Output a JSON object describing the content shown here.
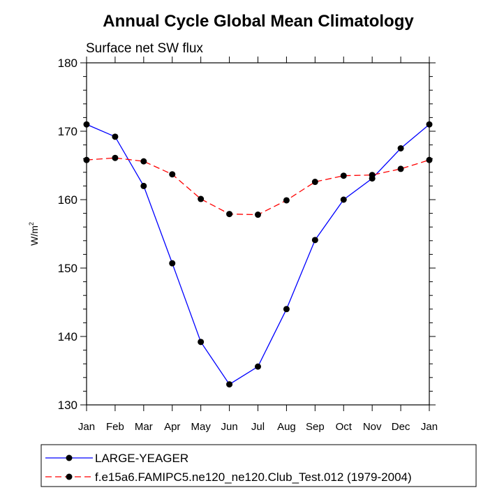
{
  "chart_data": {
    "type": "line",
    "title": "Annual Cycle Global Mean Climatology",
    "subtitle": "Surface net SW flux",
    "ylabel": "W/m",
    "ylabel_superscript": "2",
    "ylim": [
      130,
      180
    ],
    "yticks": [
      130,
      140,
      150,
      160,
      170,
      180
    ],
    "categories": [
      "Jan",
      "Feb",
      "Mar",
      "Apr",
      "May",
      "Jun",
      "Jul",
      "Aug",
      "Sep",
      "Oct",
      "Nov",
      "Dec",
      "Jan"
    ],
    "grid": false,
    "legend_position": "bottom",
    "series": [
      {
        "name": "LARGE-YEAGER",
        "color": "#0000ff",
        "line_style": "solid",
        "values": [
          171.0,
          169.2,
          162.0,
          150.7,
          139.2,
          133.0,
          135.6,
          144.0,
          154.1,
          160.0,
          163.1,
          167.5,
          171.0
        ]
      },
      {
        "name": "f.e15a6.FAMIPC5.ne120_ne120.Club_Test.012 (1979-2004)",
        "color": "#ff0000",
        "line_style": "dashed",
        "values": [
          165.8,
          166.1,
          165.6,
          163.7,
          160.1,
          157.9,
          157.8,
          159.9,
          162.6,
          163.5,
          163.6,
          164.5,
          165.8
        ]
      }
    ]
  }
}
